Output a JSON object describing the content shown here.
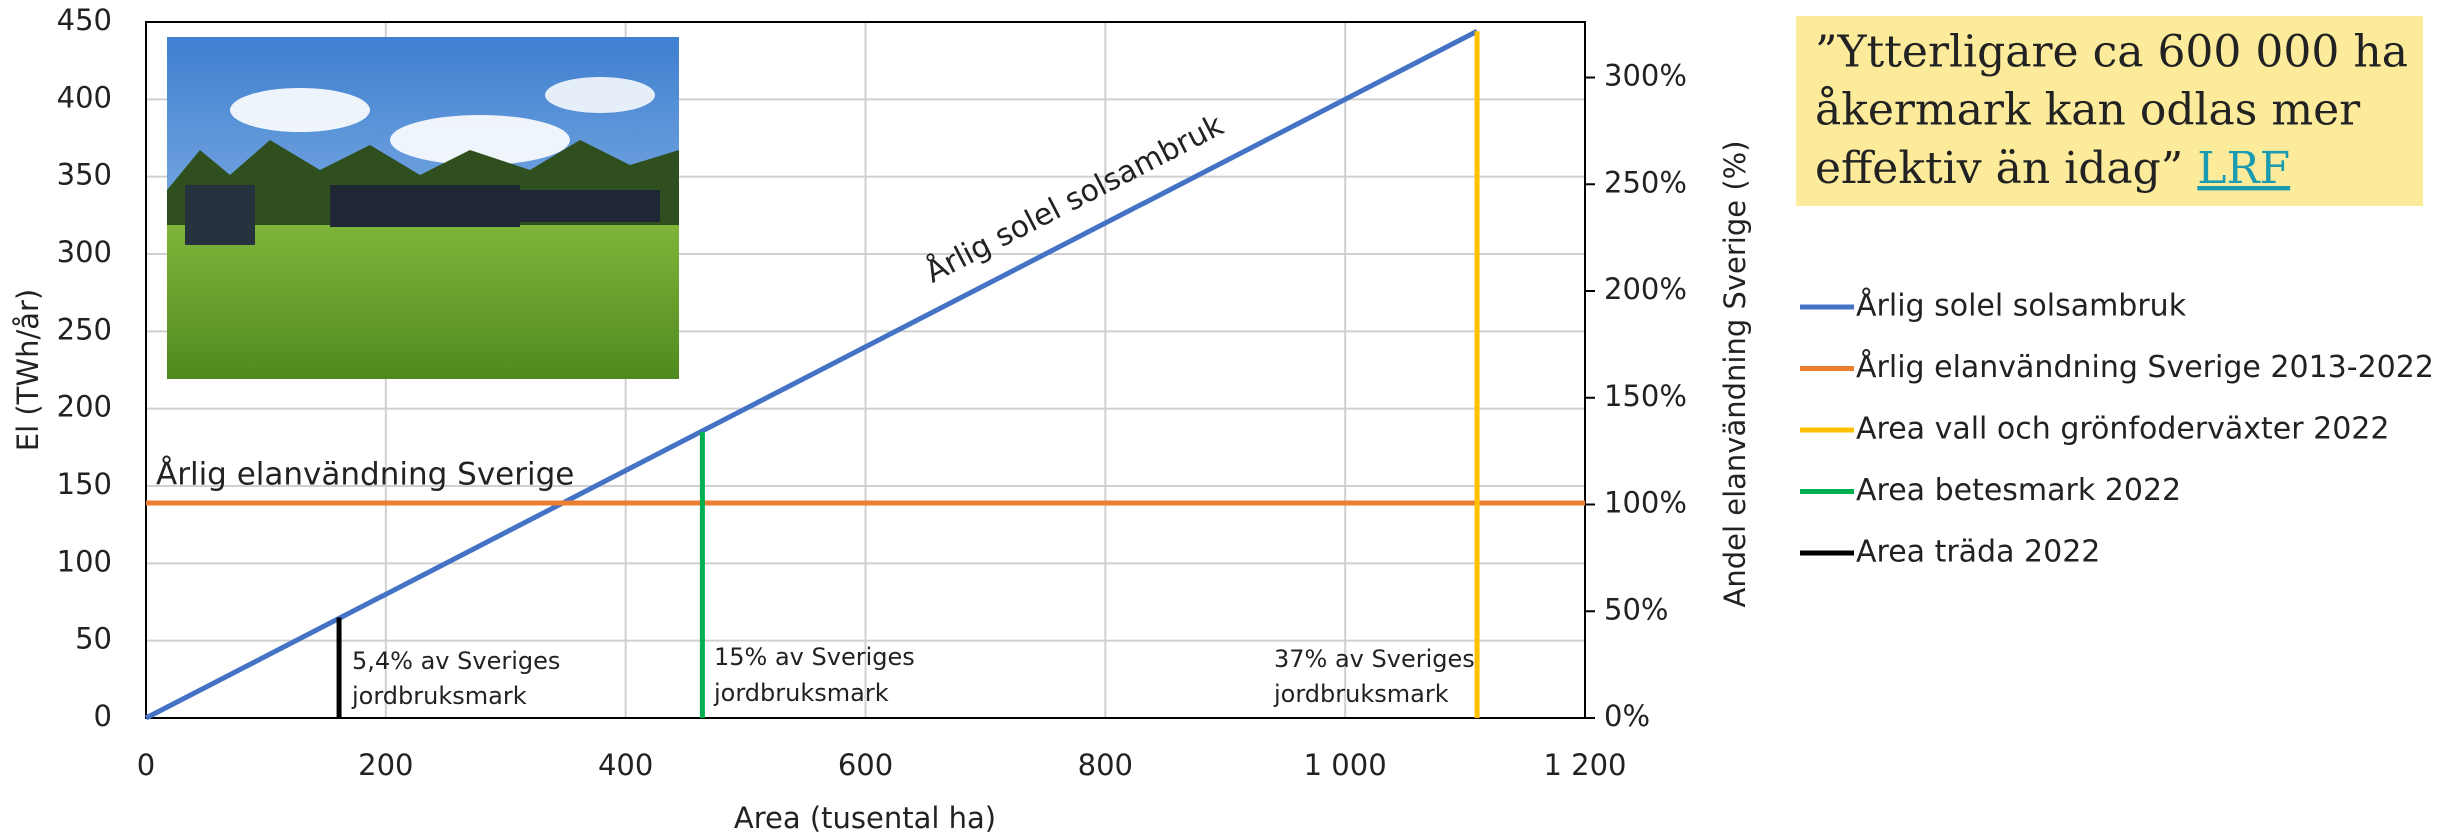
{
  "chart_data": {
    "type": "line",
    "x_label": "Area (tusental ha)",
    "y_label": "El (TWh/år)",
    "y2_label": "Andel elanvändning Sverige (%)",
    "xlim": [
      0,
      1200
    ],
    "xticks": [
      0,
      200,
      400,
      600,
      800,
      {
        "value": 1000,
        "label": "1 000"
      },
      {
        "value": 1200,
        "label": "1 200"
      }
    ],
    "ylim": [
      0,
      450
    ],
    "yticks": [
      0,
      50,
      100,
      150,
      200,
      250,
      300,
      350,
      400,
      450
    ],
    "y2lim": [
      0,
      326
    ],
    "y2ticks": [
      {
        "value": 0,
        "label": "0%"
      },
      {
        "value": 50,
        "label": "50%"
      },
      {
        "value": 100,
        "label": "100%"
      },
      {
        "value": 150,
        "label": "150%"
      },
      {
        "value": 200,
        "label": "200%"
      },
      {
        "value": 250,
        "label": "250%"
      },
      {
        "value": 300,
        "label": "300%"
      }
    ],
    "grid": true,
    "series": [
      {
        "name": "Årlig solel solsambruk",
        "color": "#4472c4",
        "x": [
          0,
          1110
        ],
        "values": [
          0,
          444
        ]
      },
      {
        "name": "Årlig elanvändning Sverige 2013-2022",
        "color": "#ed7d31",
        "x": [
          0,
          1200
        ],
        "values": [
          139,
          139
        ]
      },
      {
        "name": "Area vall och grönfoderväxter 2022",
        "color": "#ffc000",
        "x": [
          1110,
          1110
        ],
        "values": [
          0,
          444
        ]
      },
      {
        "name": "Area betesmark 2022",
        "color": "#00b050",
        "x": [
          464,
          464
        ],
        "values": [
          0,
          185
        ]
      },
      {
        "name": "Area träda 2022",
        "color": "#000000",
        "x": [
          161,
          161
        ],
        "values": [
          0,
          65
        ]
      }
    ],
    "annotations": [
      {
        "text": "Årlig solel solsambruk"
      },
      {
        "text": "Årlig elanvändning Sverige"
      },
      {
        "lines": [
          "5,4% av Sveriges",
          "jordbruksmark"
        ]
      },
      {
        "lines": [
          "15% av Sveriges",
          "jordbruksmark"
        ]
      },
      {
        "lines": [
          "37% av Sveriges",
          "jordbruksmark"
        ]
      }
    ]
  },
  "quote": {
    "lines": [
      "”Ytterligare ca 600 000 ha",
      "åkermark kan odlas mer",
      "effektiv än idag”"
    ],
    "link": "LRF"
  }
}
